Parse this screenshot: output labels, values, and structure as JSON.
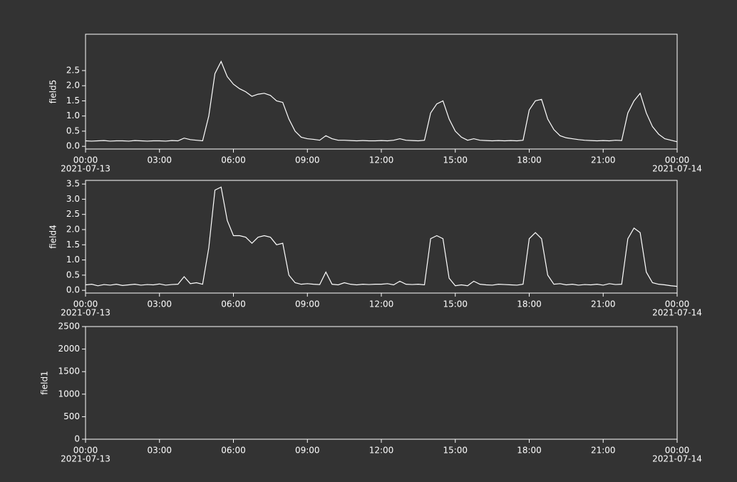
{
  "chart_data": [
    {
      "type": "line",
      "y_label": "field5",
      "xlim": [
        "2021-07-13 00:00",
        "2021-07-14 00:00"
      ],
      "xticks": [
        {
          "value": "2021-07-13 00:00",
          "label": "00:00",
          "sublabel": "2021-07-13"
        },
        {
          "value": "2021-07-13 03:00",
          "label": "03:00"
        },
        {
          "value": "2021-07-13 06:00",
          "label": "06:00"
        },
        {
          "value": "2021-07-13 09:00",
          "label": "09:00"
        },
        {
          "value": "2021-07-13 12:00",
          "label": "12:00"
        },
        {
          "value": "2021-07-13 15:00",
          "label": "15:00"
        },
        {
          "value": "2021-07-13 18:00",
          "label": "18:00"
        },
        {
          "value": "2021-07-13 21:00",
          "label": "21:00"
        },
        {
          "value": "2021-07-14 00:00",
          "label": "00:00",
          "sublabel": "2021-07-14"
        }
      ],
      "ylim": [
        -0.09,
        3.7
      ],
      "yticks": [
        {
          "value": 0,
          "label": "0.0"
        },
        0.5,
        {
          "value": 1,
          "label": "1.0"
        },
        1.5,
        {
          "value": 2,
          "label": "2.0"
        },
        2.5
      ],
      "color": "#ffffff",
      "x": [
        "2021-07-13 00:00",
        "2021-07-13 00:15",
        "2021-07-13 00:30",
        "2021-07-13 00:45",
        "2021-07-13 01:00",
        "2021-07-13 01:15",
        "2021-07-13 01:30",
        "2021-07-13 01:45",
        "2021-07-13 02:00",
        "2021-07-13 02:15",
        "2021-07-13 02:30",
        "2021-07-13 02:45",
        "2021-07-13 03:00",
        "2021-07-13 03:15",
        "2021-07-13 03:30",
        "2021-07-13 03:45",
        "2021-07-13 04:00",
        "2021-07-13 04:15",
        "2021-07-13 04:30",
        "2021-07-13 04:45",
        "2021-07-13 05:00",
        "2021-07-13 05:15",
        "2021-07-13 05:30",
        "2021-07-13 05:45",
        "2021-07-13 06:00",
        "2021-07-13 06:15",
        "2021-07-13 06:30",
        "2021-07-13 06:45",
        "2021-07-13 07:00",
        "2021-07-13 07:15",
        "2021-07-13 07:30",
        "2021-07-13 07:45",
        "2021-07-13 08:00",
        "2021-07-13 08:15",
        "2021-07-13 08:30",
        "2021-07-13 08:45",
        "2021-07-13 09:00",
        "2021-07-13 09:15",
        "2021-07-13 09:30",
        "2021-07-13 09:45",
        "2021-07-13 10:00",
        "2021-07-13 10:15",
        "2021-07-13 10:30",
        "2021-07-13 10:45",
        "2021-07-13 11:00",
        "2021-07-13 11:15",
        "2021-07-13 11:30",
        "2021-07-13 11:45",
        "2021-07-13 12:00",
        "2021-07-13 12:15",
        "2021-07-13 12:30",
        "2021-07-13 12:45",
        "2021-07-13 13:00",
        "2021-07-13 13:15",
        "2021-07-13 13:30",
        "2021-07-13 13:45",
        "2021-07-13 14:00",
        "2021-07-13 14:15",
        "2021-07-13 14:30",
        "2021-07-13 14:45",
        "2021-07-13 15:00",
        "2021-07-13 15:15",
        "2021-07-13 15:30",
        "2021-07-13 15:45",
        "2021-07-13 16:00",
        "2021-07-13 16:15",
        "2021-07-13 16:30",
        "2021-07-13 16:45",
        "2021-07-13 17:00",
        "2021-07-13 17:15",
        "2021-07-13 17:30",
        "2021-07-13 17:45",
        "2021-07-13 18:00",
        "2021-07-13 18:15",
        "2021-07-13 18:30",
        "2021-07-13 18:45",
        "2021-07-13 19:00",
        "2021-07-13 19:15",
        "2021-07-13 19:30",
        "2021-07-13 19:45",
        "2021-07-13 20:00",
        "2021-07-13 20:15",
        "2021-07-13 20:30",
        "2021-07-13 20:45",
        "2021-07-13 21:00",
        "2021-07-13 21:15",
        "2021-07-13 21:30",
        "2021-07-13 21:45",
        "2021-07-13 22:00",
        "2021-07-13 22:15",
        "2021-07-13 22:30",
        "2021-07-13 22:45",
        "2021-07-13 23:00",
        "2021-07-13 23:15",
        "2021-07-13 23:30",
        "2021-07-13 23:45",
        "2021-07-14 00:00"
      ],
      "values": [
        0.18,
        0.17,
        0.18,
        0.19,
        0.17,
        0.18,
        0.18,
        0.17,
        0.19,
        0.18,
        0.17,
        0.18,
        0.18,
        0.17,
        0.19,
        0.18,
        0.27,
        0.22,
        0.2,
        0.18,
        1.0,
        2.4,
        2.8,
        2.3,
        2.05,
        1.9,
        1.8,
        1.65,
        1.72,
        1.75,
        1.68,
        1.5,
        1.45,
        0.9,
        0.5,
        0.3,
        0.25,
        0.23,
        0.2,
        0.35,
        0.25,
        0.2,
        0.2,
        0.19,
        0.18,
        0.19,
        0.18,
        0.18,
        0.19,
        0.18,
        0.2,
        0.25,
        0.2,
        0.19,
        0.18,
        0.2,
        1.1,
        1.4,
        1.5,
        0.9,
        0.5,
        0.3,
        0.2,
        0.25,
        0.2,
        0.19,
        0.18,
        0.19,
        0.18,
        0.19,
        0.18,
        0.2,
        1.2,
        1.5,
        1.55,
        0.9,
        0.55,
        0.35,
        0.28,
        0.25,
        0.22,
        0.2,
        0.19,
        0.18,
        0.19,
        0.18,
        0.2,
        0.19,
        1.1,
        1.5,
        1.75,
        1.1,
        0.65,
        0.4,
        0.25,
        0.2,
        0.15
      ]
    },
    {
      "type": "line",
      "y_label": "field4",
      "xlim": [
        "2021-07-13 00:00",
        "2021-07-14 00:00"
      ],
      "xticks": [
        {
          "value": "2021-07-13 00:00",
          "label": "00:00",
          "sublabel": "2021-07-13"
        },
        {
          "value": "2021-07-13 03:00",
          "label": "03:00"
        },
        {
          "value": "2021-07-13 06:00",
          "label": "06:00"
        },
        {
          "value": "2021-07-13 09:00",
          "label": "09:00"
        },
        {
          "value": "2021-07-13 12:00",
          "label": "12:00"
        },
        {
          "value": "2021-07-13 15:00",
          "label": "15:00"
        },
        {
          "value": "2021-07-13 18:00",
          "label": "18:00"
        },
        {
          "value": "2021-07-13 21:00",
          "label": "21:00"
        },
        {
          "value": "2021-07-14 00:00",
          "label": "00:00",
          "sublabel": "2021-07-14"
        }
      ],
      "ylim": [
        -0.09,
        3.62
      ],
      "yticks": [
        {
          "value": 0,
          "label": "0.0"
        },
        0.5,
        {
          "value": 1,
          "label": "1.0"
        },
        1.5,
        {
          "value": 2,
          "label": "2.0"
        },
        2.5,
        {
          "value": 3,
          "label": "3.0"
        },
        3.5
      ],
      "color": "#ffffff",
      "x": [
        "2021-07-13 00:00",
        "2021-07-13 00:15",
        "2021-07-13 00:30",
        "2021-07-13 00:45",
        "2021-07-13 01:00",
        "2021-07-13 01:15",
        "2021-07-13 01:30",
        "2021-07-13 01:45",
        "2021-07-13 02:00",
        "2021-07-13 02:15",
        "2021-07-13 02:30",
        "2021-07-13 02:45",
        "2021-07-13 03:00",
        "2021-07-13 03:15",
        "2021-07-13 03:30",
        "2021-07-13 03:45",
        "2021-07-13 04:00",
        "2021-07-13 04:15",
        "2021-07-13 04:30",
        "2021-07-13 04:45",
        "2021-07-13 05:00",
        "2021-07-13 05:15",
        "2021-07-13 05:30",
        "2021-07-13 05:45",
        "2021-07-13 06:00",
        "2021-07-13 06:15",
        "2021-07-13 06:30",
        "2021-07-13 06:45",
        "2021-07-13 07:00",
        "2021-07-13 07:15",
        "2021-07-13 07:30",
        "2021-07-13 07:45",
        "2021-07-13 08:00",
        "2021-07-13 08:15",
        "2021-07-13 08:30",
        "2021-07-13 08:45",
        "2021-07-13 09:00",
        "2021-07-13 09:15",
        "2021-07-13 09:30",
        "2021-07-13 09:45",
        "2021-07-13 10:00",
        "2021-07-13 10:15",
        "2021-07-13 10:30",
        "2021-07-13 10:45",
        "2021-07-13 11:00",
        "2021-07-13 11:15",
        "2021-07-13 11:30",
        "2021-07-13 11:45",
        "2021-07-13 12:00",
        "2021-07-13 12:15",
        "2021-07-13 12:30",
        "2021-07-13 12:45",
        "2021-07-13 13:00",
        "2021-07-13 13:15",
        "2021-07-13 13:30",
        "2021-07-13 13:45",
        "2021-07-13 14:00",
        "2021-07-13 14:15",
        "2021-07-13 14:30",
        "2021-07-13 14:45",
        "2021-07-13 15:00",
        "2021-07-13 15:15",
        "2021-07-13 15:30",
        "2021-07-13 15:45",
        "2021-07-13 16:00",
        "2021-07-13 16:15",
        "2021-07-13 16:30",
        "2021-07-13 16:45",
        "2021-07-13 17:00",
        "2021-07-13 17:15",
        "2021-07-13 17:30",
        "2021-07-13 17:45",
        "2021-07-13 18:00",
        "2021-07-13 18:15",
        "2021-07-13 18:30",
        "2021-07-13 18:45",
        "2021-07-13 19:00",
        "2021-07-13 19:15",
        "2021-07-13 19:30",
        "2021-07-13 19:45",
        "2021-07-13 20:00",
        "2021-07-13 20:15",
        "2021-07-13 20:30",
        "2021-07-13 20:45",
        "2021-07-13 21:00",
        "2021-07-13 21:15",
        "2021-07-13 21:30",
        "2021-07-13 21:45",
        "2021-07-13 22:00",
        "2021-07-13 22:15",
        "2021-07-13 22:30",
        "2021-07-13 22:45",
        "2021-07-13 23:00",
        "2021-07-13 23:15",
        "2021-07-13 23:30",
        "2021-07-13 23:45",
        "2021-07-14 00:00"
      ],
      "values": [
        0.18,
        0.2,
        0.15,
        0.19,
        0.17,
        0.2,
        0.16,
        0.18,
        0.2,
        0.17,
        0.19,
        0.18,
        0.21,
        0.17,
        0.19,
        0.2,
        0.45,
        0.22,
        0.25,
        0.2,
        1.4,
        3.3,
        3.4,
        2.3,
        1.8,
        1.8,
        1.75,
        1.55,
        1.75,
        1.8,
        1.75,
        1.5,
        1.55,
        0.5,
        0.25,
        0.2,
        0.22,
        0.2,
        0.19,
        0.6,
        0.2,
        0.18,
        0.25,
        0.2,
        0.18,
        0.2,
        0.19,
        0.2,
        0.2,
        0.22,
        0.18,
        0.3,
        0.2,
        0.19,
        0.2,
        0.18,
        1.7,
        1.8,
        1.7,
        0.4,
        0.15,
        0.18,
        0.15,
        0.3,
        0.2,
        0.18,
        0.17,
        0.2,
        0.19,
        0.18,
        0.17,
        0.2,
        1.7,
        1.9,
        1.7,
        0.5,
        0.2,
        0.22,
        0.18,
        0.2,
        0.17,
        0.19,
        0.18,
        0.2,
        0.17,
        0.22,
        0.19,
        0.2,
        1.7,
        2.05,
        1.9,
        0.6,
        0.25,
        0.2,
        0.18,
        0.15,
        0.13
      ]
    },
    {
      "type": "line",
      "y_label": "field1",
      "xlim": [
        "2021-07-13 00:00",
        "2021-07-14 00:00"
      ],
      "xticks": [
        {
          "value": "2021-07-13 00:00",
          "label": "00:00",
          "sublabel": "2021-07-13"
        },
        {
          "value": "2021-07-13 03:00",
          "label": "03:00"
        },
        {
          "value": "2021-07-13 06:00",
          "label": "06:00"
        },
        {
          "value": "2021-07-13 09:00",
          "label": "09:00"
        },
        {
          "value": "2021-07-13 12:00",
          "label": "12:00"
        },
        {
          "value": "2021-07-13 15:00",
          "label": "15:00"
        },
        {
          "value": "2021-07-13 18:00",
          "label": "18:00"
        },
        {
          "value": "2021-07-13 21:00",
          "label": "21:00"
        },
        {
          "value": "2021-07-14 00:00",
          "label": "00:00",
          "sublabel": "2021-07-14"
        }
      ],
      "ylim": [
        0,
        2500
      ],
      "yticks": [
        0,
        500,
        1000,
        1500,
        2000,
        2500
      ],
      "color": "#ffffff",
      "x": [],
      "values": []
    }
  ]
}
